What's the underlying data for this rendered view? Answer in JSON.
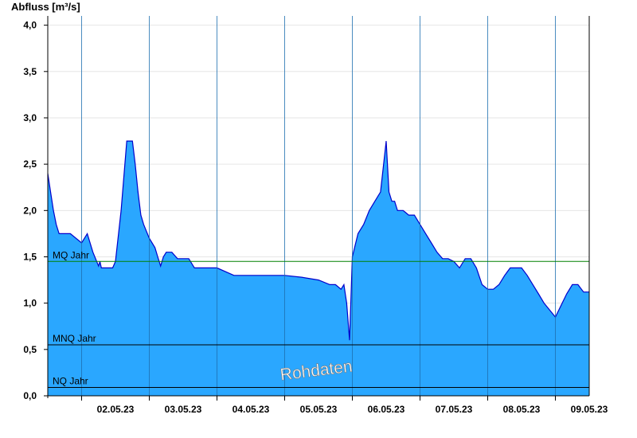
{
  "chart_data": {
    "type": "area",
    "ylabel": "Abfluss [m³/s]",
    "ylim": [
      0,
      4.1
    ],
    "yticks": [
      "0,0",
      "0,5",
      "1,0",
      "1,5",
      "2,0",
      "2,5",
      "3,0",
      "3,5",
      "4,0"
    ],
    "xlim": [
      "2023-05-01T12:00",
      "2023-05-09T12:00"
    ],
    "xticks": [
      "02.05.23",
      "03.05.23",
      "04.05.23",
      "05.05.23",
      "06.05.23",
      "07.05.23",
      "08.05.23",
      "09.05.23"
    ],
    "grid": true,
    "watermark": "Rohdaten",
    "colors": {
      "fill": "#2aa7ff",
      "line": "#0000cc",
      "mq": "#008000",
      "ref": "#000000"
    },
    "reference_lines": [
      {
        "label": "MQ Jahr",
        "value": 1.45
      },
      {
        "label": "MNQ Jahr",
        "value": 0.55
      },
      {
        "label": "NQ Jahr",
        "value": 0.09
      }
    ],
    "series": [
      {
        "x": [
          "2023-05-01T12:00",
          "2023-05-01T13:00",
          "2023-05-01T14:00",
          "2023-05-01T15:00",
          "2023-05-01T16:00",
          "2023-05-01T18:00",
          "2023-05-01T20:00",
          "2023-05-02T00:00",
          "2023-05-02T02:00",
          "2023-05-02T04:00",
          "2023-05-02T06:00",
          "2023-05-02T06:30",
          "2023-05-02T07:00",
          "2023-05-02T08:00",
          "2023-05-02T09:00",
          "2023-05-02T10:00",
          "2023-05-02T11:00",
          "2023-05-02T12:00",
          "2023-05-02T14:00",
          "2023-05-02T16:00",
          "2023-05-02T18:00",
          "2023-05-02T19:00",
          "2023-05-02T20:00",
          "2023-05-02T21:00",
          "2023-05-02T22:00",
          "2023-05-03T00:00",
          "2023-05-03T02:00",
          "2023-05-03T03:00",
          "2023-05-03T04:00",
          "2023-05-03T05:00",
          "2023-05-03T06:00",
          "2023-05-03T08:00",
          "2023-05-03T10:00",
          "2023-05-03T12:00",
          "2023-05-03T14:00",
          "2023-05-03T16:00",
          "2023-05-03T18:00",
          "2023-05-03T20:00",
          "2023-05-04T00:00",
          "2023-05-04T06:00",
          "2023-05-04T12:00",
          "2023-05-04T18:00",
          "2023-05-05T00:00",
          "2023-05-05T06:00",
          "2023-05-05T12:00",
          "2023-05-05T16:00",
          "2023-05-05T18:00",
          "2023-05-05T20:00",
          "2023-05-05T21:00",
          "2023-05-05T22:00",
          "2023-05-05T23:00",
          "2023-05-06T00:00",
          "2023-05-06T02:00",
          "2023-05-06T04:00",
          "2023-05-06T06:00",
          "2023-05-06T08:00",
          "2023-05-06T10:00",
          "2023-05-06T12:00",
          "2023-05-06T13:00",
          "2023-05-06T14:00",
          "2023-05-06T15:00",
          "2023-05-06T16:00",
          "2023-05-06T18:00",
          "2023-05-06T20:00",
          "2023-05-06T22:00",
          "2023-05-07T00:00",
          "2023-05-07T02:00",
          "2023-05-07T04:00",
          "2023-05-07T06:00",
          "2023-05-07T08:00",
          "2023-05-07T10:00",
          "2023-05-07T12:00",
          "2023-05-07T14:00",
          "2023-05-07T16:00",
          "2023-05-07T18:00",
          "2023-05-07T20:00",
          "2023-05-07T22:00",
          "2023-05-08T00:00",
          "2023-05-08T02:00",
          "2023-05-08T04:00",
          "2023-05-08T06:00",
          "2023-05-08T08:00",
          "2023-05-08T10:00",
          "2023-05-08T12:00",
          "2023-05-08T14:00",
          "2023-05-08T16:00",
          "2023-05-08T18:00",
          "2023-05-08T20:00",
          "2023-05-09T00:00",
          "2023-05-09T04:00",
          "2023-05-09T06:00",
          "2023-05-09T08:00",
          "2023-05-09T10:00",
          "2023-05-09T11:00",
          "2023-05-09T12:00"
        ],
        "y": [
          2.4,
          2.2,
          2.0,
          1.85,
          1.75,
          1.75,
          1.75,
          1.65,
          1.75,
          1.55,
          1.4,
          1.45,
          1.38,
          1.38,
          1.38,
          1.38,
          1.38,
          1.45,
          2.0,
          2.75,
          2.75,
          2.5,
          2.2,
          1.95,
          1.85,
          1.7,
          1.6,
          1.5,
          1.4,
          1.5,
          1.55,
          1.55,
          1.48,
          1.48,
          1.48,
          1.38,
          1.38,
          1.38,
          1.38,
          1.3,
          1.3,
          1.3,
          1.3,
          1.28,
          1.25,
          1.2,
          1.2,
          1.15,
          1.2,
          1.0,
          0.6,
          1.5,
          1.75,
          1.85,
          2.0,
          2.1,
          2.2,
          2.75,
          2.2,
          2.1,
          2.1,
          2.0,
          2.0,
          1.95,
          1.95,
          1.85,
          1.75,
          1.65,
          1.55,
          1.48,
          1.48,
          1.45,
          1.38,
          1.48,
          1.48,
          1.38,
          1.2,
          1.15,
          1.15,
          1.2,
          1.3,
          1.38,
          1.38,
          1.38,
          1.3,
          1.2,
          1.1,
          1.0,
          0.85,
          1.1,
          1.2,
          1.2,
          1.12,
          1.12,
          1.12
        ]
      }
    ]
  }
}
